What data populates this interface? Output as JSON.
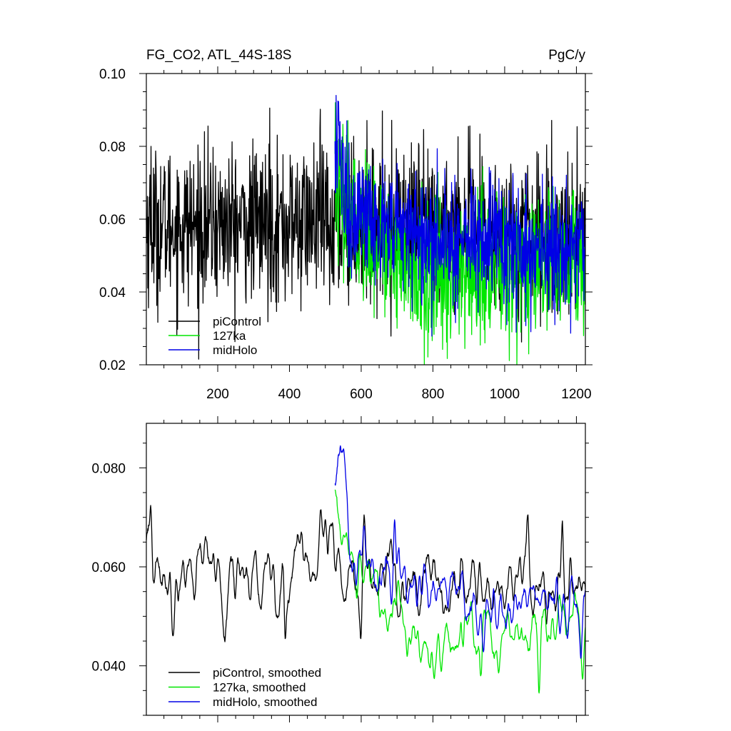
{
  "chart_data": [
    {
      "type": "line",
      "title": "FG_CO2, ATL_44S-18S",
      "units": "PgC/y",
      "xlim": [
        1,
        1225
      ],
      "ylim": [
        0.02,
        0.1
      ],
      "x_ticks": [
        200,
        400,
        600,
        800,
        1000,
        1200
      ],
      "x_tick_labels": [
        "200",
        "400",
        "600",
        "800",
        "1000",
        "1200"
      ],
      "y_ticks": [
        0.02,
        0.04,
        0.06,
        0.08,
        0.1
      ],
      "y_tick_labels": [
        "0.02",
        "0.04",
        "0.06",
        "0.08",
        "0.10"
      ],
      "grid": false,
      "legend_position": "bottom-left",
      "series": [
        {
          "name": "piControl",
          "color": "#000000",
          "x_start": 1,
          "x_end": 1225,
          "mean": 0.058,
          "noise": 0.0105,
          "segments": [
            [
              1,
              0.058
            ],
            [
              520,
              0.059
            ],
            [
              700,
              0.058
            ],
            [
              1225,
              0.056
            ]
          ],
          "peaks": [
            [
              14,
              0.08
            ],
            [
              345,
              0.0905
            ],
            [
              485,
              0.085
            ],
            [
              388,
              0.0375
            ],
            [
              512,
              0.0365
            ],
            [
              740,
              0.081
            ],
            [
              1090,
              0.0785
            ]
          ]
        },
        {
          "name": "127ka",
          "color": "#00e600",
          "x_start": 527,
          "x_end": 1225,
          "mean": 0.048,
          "noise": 0.01,
          "segments": [
            [
              527,
              0.07
            ],
            [
              545,
              0.063
            ],
            [
              700,
              0.051
            ],
            [
              750,
              0.043
            ],
            [
              1000,
              0.046
            ],
            [
              1225,
              0.046
            ]
          ],
          "peaks": [
            [
              528,
              0.092
            ],
            [
              945,
              0.026
            ],
            [
              1067,
              0.023
            ],
            [
              1220,
              0.028
            ],
            [
              1190,
              0.068
            ]
          ]
        },
        {
          "name": "midHolo",
          "color": "#0000e6",
          "x_start": 527,
          "x_end": 1225,
          "mean": 0.055,
          "noise": 0.009,
          "segments": [
            [
              527,
              0.078
            ],
            [
              545,
              0.074
            ],
            [
              575,
              0.06
            ],
            [
              700,
              0.057
            ],
            [
              1000,
              0.053
            ],
            [
              1225,
              0.05
            ]
          ],
          "peaks": [
            [
              530,
              0.094
            ],
            [
              1006,
              0.031
            ],
            [
              1140,
              0.031
            ]
          ]
        }
      ]
    },
    {
      "type": "line",
      "xlim": [
        1,
        1225
      ],
      "ylim": [
        0.03,
        0.089
      ],
      "x_ticks": [
        200,
        400,
        600,
        800,
        1000,
        1200
      ],
      "y_ticks": [
        0.04,
        0.06,
        0.08
      ],
      "y_tick_labels": [
        "0.040",
        "0.060",
        "0.080"
      ],
      "grid": false,
      "legend_position": "bottom-left",
      "series": [
        {
          "name": "piControl, smoothed",
          "color": "#000000",
          "x_start": 1,
          "x_end": 1225,
          "noise": 0.004,
          "segments": [
            [
              1,
              0.059
            ],
            [
              300,
              0.059
            ],
            [
              520,
              0.0595
            ],
            [
              700,
              0.0565
            ],
            [
              1000,
              0.0555
            ],
            [
              1225,
              0.0545
            ]
          ],
          "peaks": [
            [
              14,
              0.0715
            ],
            [
              388,
              0.0455
            ],
            [
              487,
              0.0715
            ],
            [
              1065,
              0.0705
            ],
            [
              1160,
              0.0685
            ],
            [
              600,
              0.0465
            ]
          ]
        },
        {
          "name": "127ka, smoothed",
          "color": "#00e600",
          "x_start": 527,
          "x_end": 1225,
          "noise": 0.0032,
          "segments": [
            [
              527,
              0.072
            ],
            [
              545,
              0.065
            ],
            [
              570,
              0.06
            ],
            [
              700,
              0.053
            ],
            [
              730,
              0.044
            ],
            [
              900,
              0.046
            ],
            [
              1225,
              0.047
            ]
          ],
          "peaks": [
            [
              533,
              0.0725
            ],
            [
              1096,
              0.0345
            ],
            [
              1218,
              0.0375
            ],
            [
              935,
              0.0385
            ]
          ]
        },
        {
          "name": "midHolo, smoothed",
          "color": "#0000e6",
          "x_start": 527,
          "x_end": 1225,
          "noise": 0.0032,
          "segments": [
            [
              527,
              0.077
            ],
            [
              542,
              0.08
            ],
            [
              575,
              0.062
            ],
            [
              700,
              0.057
            ],
            [
              900,
              0.055
            ],
            [
              1100,
              0.052
            ],
            [
              1225,
              0.05
            ]
          ],
          "peaks": [
            [
              536,
              0.0825
            ],
            [
              693,
              0.0695
            ],
            [
              940,
              0.043
            ]
          ]
        }
      ]
    }
  ]
}
